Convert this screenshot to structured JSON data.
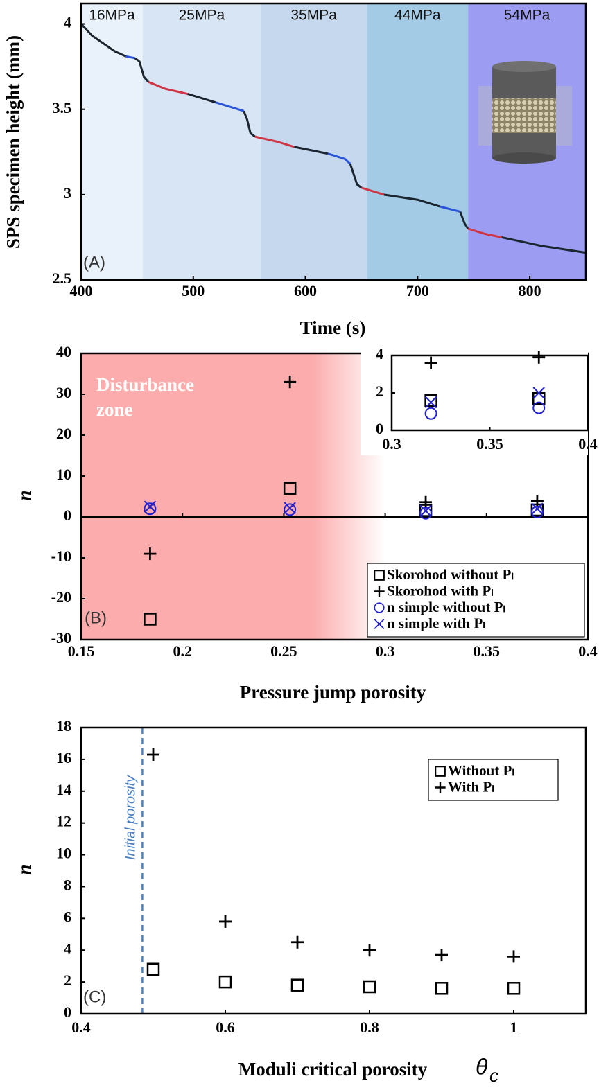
{
  "chart_data": [
    {
      "type": "line",
      "y_label": "SPS specimen height (mm)",
      "x_label": "Time (s)",
      "panel_label": "(A)",
      "xlim": [
        400,
        850
      ],
      "ylim": [
        2.5,
        4.12
      ],
      "xticks": [
        400,
        500,
        600,
        700,
        800
      ],
      "yticks": [
        2.5,
        3,
        3.5,
        4
      ],
      "bands": [
        {
          "label": "16MPa",
          "from": 400,
          "to": 455,
          "color": "#e9f1fa"
        },
        {
          "label": "25MPa",
          "from": 455,
          "to": 560,
          "color": "#d8e5f4"
        },
        {
          "label": "35MPa",
          "from": 560,
          "to": 655,
          "color": "#c6d8ee"
        },
        {
          "label": "44MPa",
          "from": 655,
          "to": 745,
          "color": "#a3cbe6"
        },
        {
          "label": "54MPa",
          "from": 745,
          "to": 850,
          "color": "#9c9cf2"
        }
      ],
      "series": [
        {
          "color": "#1a2530",
          "x": [
            400,
            410,
            430,
            440
          ],
          "values": [
            4.0,
            3.93,
            3.84,
            3.81
          ]
        },
        {
          "color": "#2a55d8",
          "x": [
            440,
            448
          ],
          "values": [
            3.81,
            3.8
          ]
        },
        {
          "color": "#1a2530",
          "x": [
            448,
            452,
            456,
            460
          ],
          "values": [
            3.8,
            3.78,
            3.69,
            3.66
          ]
        },
        {
          "color": "#d03545",
          "x": [
            460,
            475,
            495
          ],
          "values": [
            3.66,
            3.62,
            3.59
          ]
        },
        {
          "color": "#1a2530",
          "x": [
            495,
            520
          ],
          "values": [
            3.59,
            3.54
          ]
        },
        {
          "color": "#2a55d8",
          "x": [
            520,
            545
          ],
          "values": [
            3.54,
            3.49
          ]
        },
        {
          "color": "#1a2530",
          "x": [
            545,
            548,
            551,
            555
          ],
          "values": [
            3.49,
            3.44,
            3.36,
            3.34
          ]
        },
        {
          "color": "#d03545",
          "x": [
            555,
            575,
            590
          ],
          "values": [
            3.34,
            3.31,
            3.28
          ]
        },
        {
          "color": "#1a2530",
          "x": [
            590,
            620
          ],
          "values": [
            3.28,
            3.24
          ]
        },
        {
          "color": "#2a55d8",
          "x": [
            620,
            635,
            640
          ],
          "values": [
            3.24,
            3.21,
            3.18
          ]
        },
        {
          "color": "#1a2530",
          "x": [
            640,
            643,
            646,
            650
          ],
          "values": [
            3.18,
            3.12,
            3.06,
            3.04
          ]
        },
        {
          "color": "#d03545",
          "x": [
            650,
            670
          ],
          "values": [
            3.04,
            3.0
          ]
        },
        {
          "color": "#1a2530",
          "x": [
            670,
            700,
            720
          ],
          "values": [
            3.0,
            2.97,
            2.93
          ]
        },
        {
          "color": "#2a55d8",
          "x": [
            720,
            738
          ],
          "values": [
            2.93,
            2.9
          ]
        },
        {
          "color": "#1a2530",
          "x": [
            738,
            742,
            745
          ],
          "values": [
            2.9,
            2.83,
            2.8
          ]
        },
        {
          "color": "#d03545",
          "x": [
            745,
            760,
            775
          ],
          "values": [
            2.8,
            2.77,
            2.75
          ]
        },
        {
          "color": "#1a2530",
          "x": [
            775,
            810,
            850
          ],
          "values": [
            2.75,
            2.7,
            2.66
          ]
        }
      ]
    },
    {
      "type": "scatter",
      "y_label": "n",
      "x_label": "Pressure jump porosity",
      "panel_label": "(B)",
      "xlim": [
        0.15,
        0.4
      ],
      "ylim": [
        -30,
        40
      ],
      "xticks": [
        0.15,
        0.2,
        0.25,
        0.3,
        0.35,
        0.4
      ],
      "yticks": [
        -30,
        -20,
        -10,
        0,
        10,
        20,
        30,
        40
      ],
      "zone": {
        "label": [
          "Disturbance",
          "zone"
        ],
        "from": 0.15,
        "to": 0.3,
        "color": "#fcacac"
      },
      "series": [
        {
          "name": "Skorohod without Pₗ",
          "marker": "square",
          "color": "#000000",
          "x": [
            0.184,
            0.253,
            0.32,
            0.375
          ],
          "values": [
            -25,
            7,
            1.6,
            1.7
          ]
        },
        {
          "name": "Skorohod with Pₗ",
          "marker": "plus",
          "color": "#000000",
          "x": [
            0.184,
            0.253,
            0.32,
            0.375
          ],
          "values": [
            -9,
            33,
            3.6,
            3.9
          ]
        },
        {
          "name": "n simple without Pₗ",
          "marker": "circle",
          "color": "#2020d0",
          "x": [
            0.184,
            0.253,
            0.32,
            0.375
          ],
          "values": [
            2,
            1.8,
            0.9,
            1.2
          ]
        },
        {
          "name": "n simple with Pₗ",
          "marker": "cross",
          "color": "#2020d0",
          "x": [
            0.184,
            0.253,
            0.32,
            0.375
          ],
          "values": [
            2.5,
            2.2,
            1.5,
            2.0
          ]
        }
      ],
      "inset": {
        "xlim": [
          0.3,
          0.4
        ],
        "ylim": [
          0,
          4
        ],
        "xticks": [
          0.3,
          0.35,
          0.4
        ],
        "yticks": [
          0,
          2,
          4
        ]
      }
    },
    {
      "type": "scatter",
      "y_label": "n",
      "x_label": "Moduli critical porosity",
      "x_symbol": "θ",
      "x_symbol_sub": "c",
      "panel_label": "(C)",
      "xlim": [
        0.4,
        1.1
      ],
      "ylim": [
        0,
        18
      ],
      "xticks": [
        0.4,
        0.6,
        0.8,
        1
      ],
      "yticks": [
        0,
        2,
        4,
        6,
        8,
        10,
        12,
        14,
        16,
        18
      ],
      "vline": {
        "label": "Initial porosity",
        "x": 0.485,
        "color": "#4a7fc0"
      },
      "series": [
        {
          "name": "Without Pₗ",
          "marker": "square",
          "color": "#000000",
          "x": [
            0.5,
            0.6,
            0.7,
            0.8,
            0.9,
            1
          ],
          "values": [
            2.8,
            2.0,
            1.8,
            1.7,
            1.6,
            1.6
          ]
        },
        {
          "name": "With Pₗ",
          "marker": "plus",
          "color": "#000000",
          "x": [
            0.5,
            0.6,
            0.7,
            0.8,
            0.9,
            1
          ],
          "values": [
            16.3,
            5.8,
            4.5,
            4.0,
            3.7,
            3.6
          ]
        }
      ]
    }
  ]
}
